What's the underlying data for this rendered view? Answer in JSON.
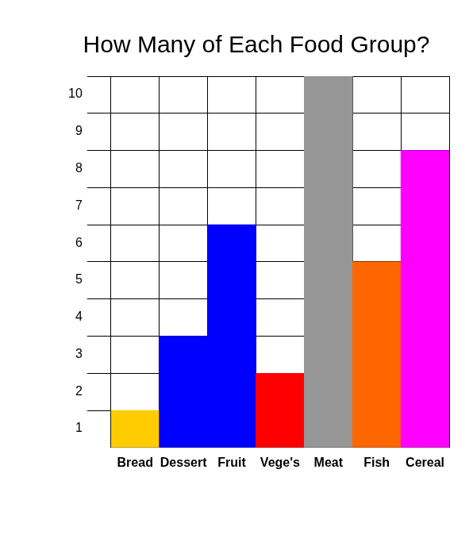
{
  "chart_data": {
    "type": "bar",
    "title": "How Many of Each Food Group?",
    "categories": [
      "Bread",
      "Dessert",
      "Fruit",
      "Vege's",
      "Meat",
      "Fish",
      "Cereal"
    ],
    "values": [
      1,
      3,
      6,
      2,
      10,
      5,
      8
    ],
    "colors": [
      "#ffcc00",
      "#0000ff",
      "#0000ff",
      "#ff0000",
      "#969696",
      "#ff6600",
      "#ff00ff"
    ],
    "ylim": [
      0,
      10
    ],
    "yticks": [
      1,
      2,
      3,
      4,
      5,
      6,
      7,
      8,
      9,
      10
    ],
    "grid": true
  }
}
